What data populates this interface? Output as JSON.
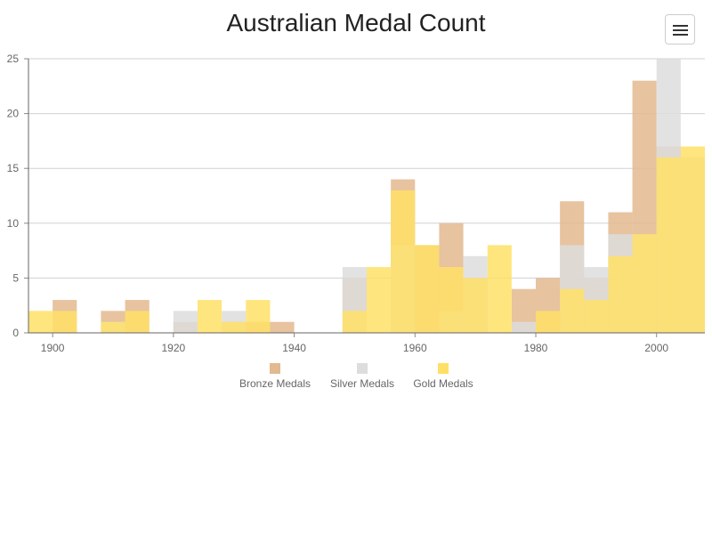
{
  "chart_data": {
    "type": "bar",
    "title": "Australian Medal Count",
    "x": [
      1896,
      1900,
      1904,
      1908,
      1912,
      1916,
      1920,
      1924,
      1928,
      1932,
      1936,
      1940,
      1944,
      1948,
      1952,
      1956,
      1960,
      1964,
      1968,
      1972,
      1976,
      1980,
      1984,
      1988,
      1992,
      1996,
      2000,
      2004
    ],
    "bin_width": 4,
    "xlim": [
      1896,
      2008
    ],
    "ylim": [
      0,
      25
    ],
    "x_ticks": [
      1900,
      1920,
      1940,
      1960,
      1980,
      2000
    ],
    "y_ticks": [
      0,
      5,
      10,
      15,
      20,
      25
    ],
    "grid": true,
    "legend_position": "bottom-center",
    "overlapping": true,
    "series": [
      {
        "name": "Bronze Medals",
        "color": "#e3b98f",
        "values": [
          0,
          3,
          0,
          2,
          3,
          0,
          1,
          0,
          1,
          1,
          1,
          0,
          0,
          5,
          0,
          14,
          8,
          10,
          5,
          0,
          4,
          5,
          12,
          5,
          11,
          23,
          17,
          16
        ]
      },
      {
        "name": "Silver Medals",
        "color": "#dddddd",
        "values": [
          0,
          0,
          0,
          1,
          0,
          0,
          2,
          0,
          2,
          0,
          0,
          0,
          0,
          6,
          0,
          8,
          0,
          2,
          7,
          0,
          1,
          0,
          8,
          6,
          9,
          9,
          25,
          16
        ]
      },
      {
        "name": "Gold Medals",
        "color": "#ffe066",
        "values": [
          2,
          2,
          0,
          1,
          2,
          0,
          0,
          3,
          1,
          3,
          0,
          0,
          0,
          2,
          6,
          13,
          8,
          6,
          5,
          8,
          0,
          2,
          4,
          3,
          7,
          9,
          16,
          17
        ]
      }
    ]
  },
  "menu": {
    "icon": "hamburger-menu-icon"
  }
}
